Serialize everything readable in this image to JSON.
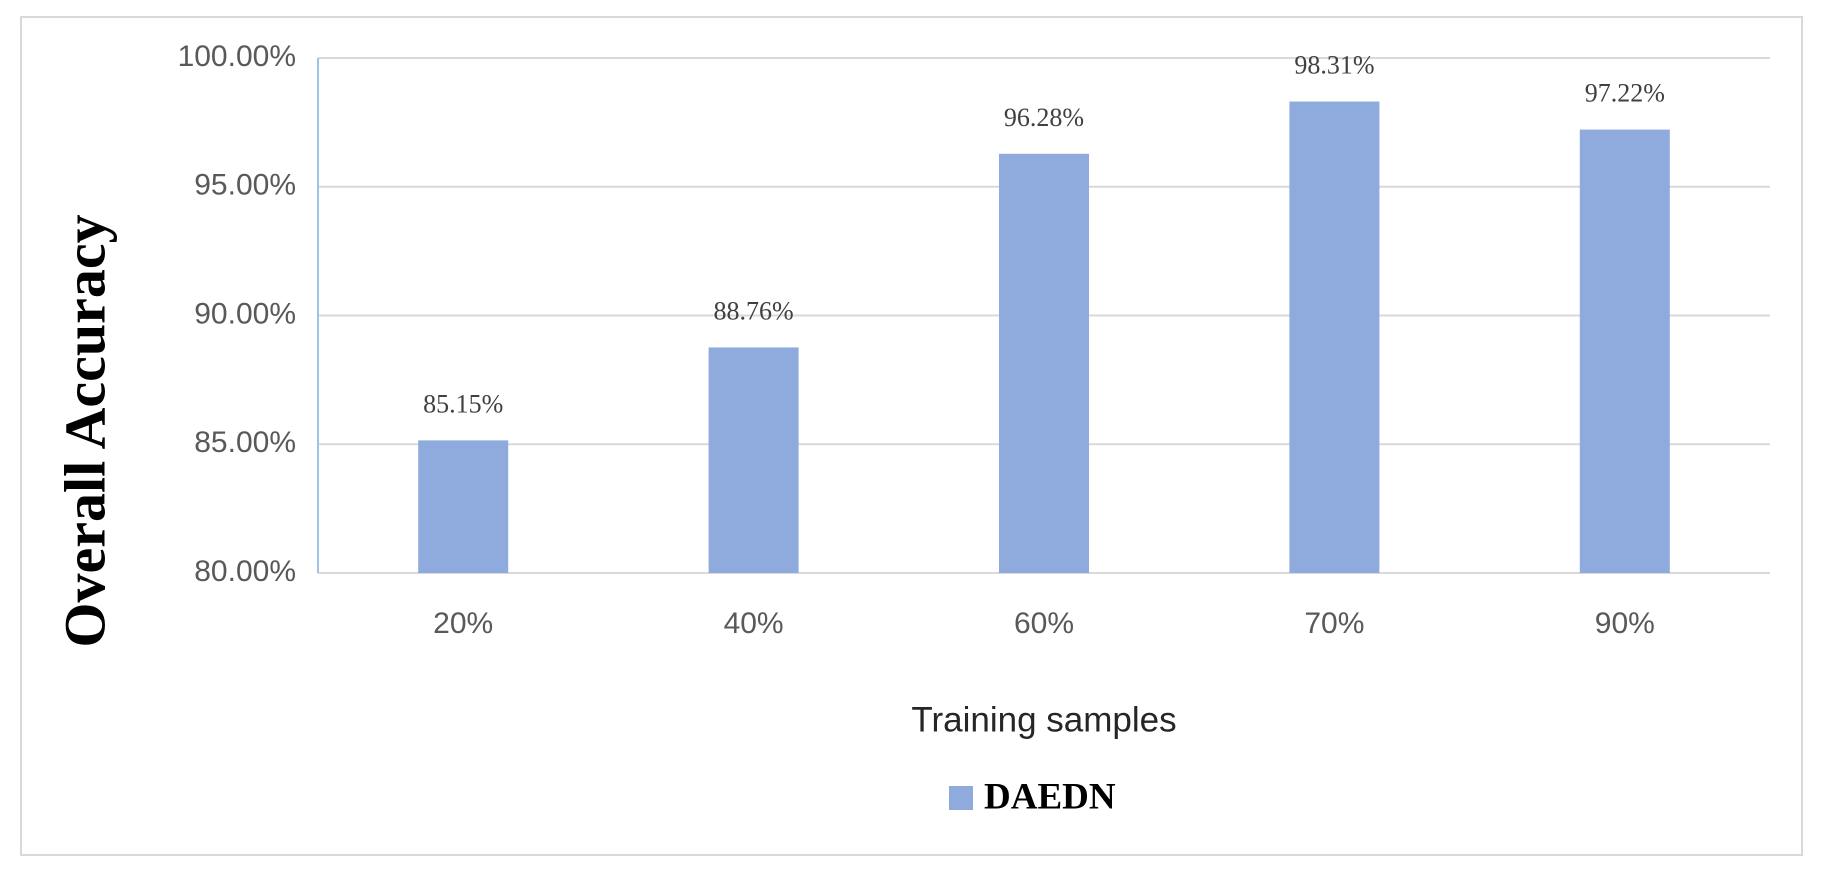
{
  "chart_data": {
    "type": "bar",
    "y_label": "Overall Accuracy",
    "x_label": "Training samples",
    "categories": [
      "20%",
      "40%",
      "60%",
      "70%",
      "90%"
    ],
    "series": [
      {
        "name": "DAEDN",
        "color": "#8faadc",
        "values": [
          85.15,
          88.76,
          96.28,
          98.31,
          97.22
        ],
        "value_labels": [
          "85.15%",
          "88.76%",
          "96.28%",
          "98.31%",
          "97.22%"
        ]
      }
    ],
    "ylim": [
      80,
      100
    ],
    "yticks": [
      {
        "value": 80,
        "label": "80.00%"
      },
      {
        "value": 85,
        "label": "85.00%"
      },
      {
        "value": 90,
        "label": "90.00%"
      },
      {
        "value": 95,
        "label": "95.00%"
      },
      {
        "value": 100,
        "label": "100.00%"
      }
    ],
    "grid": true,
    "legend": "bottom"
  }
}
